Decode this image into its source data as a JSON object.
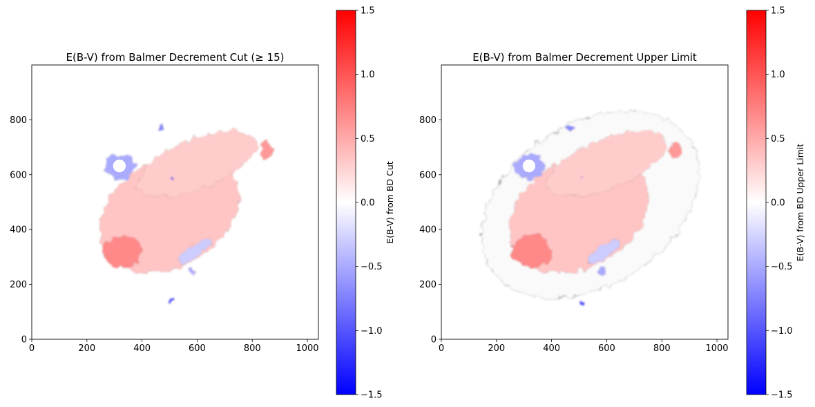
{
  "figure": {
    "colormap": {
      "name": "bwr",
      "low": "#0000ff",
      "mid": "#ffffff",
      "high": "#ff0000"
    },
    "colorbar_ticks": [
      -1.5,
      -1.0,
      -0.5,
      0.0,
      0.5,
      1.0,
      1.5
    ],
    "colorbar_tick_labels": [
      "−1.5",
      "−1.0",
      "−0.5",
      "0.0",
      "0.5",
      "1.0",
      "1.5"
    ],
    "axis_ticks": [
      0,
      200,
      400,
      600,
      800,
      1000
    ]
  },
  "chart_data": [
    {
      "type": "heatmap",
      "title": "E(B-V) from Balmer Decrement Cut (≥ 15)",
      "xlabel": "",
      "ylabel": "",
      "xlim": [
        0,
        1040
      ],
      "ylim": [
        0,
        1000
      ],
      "colorbar_label": "E(B-V) from BD Cut",
      "vlim": [
        -1.5,
        1.5
      ],
      "grid": false,
      "show_outer_contour": false,
      "regions": [
        {
          "kind": "main",
          "cx": 500,
          "cy": 460,
          "rx": 270,
          "ry": 195,
          "rotation_deg": 30,
          "value": 0.35
        },
        {
          "kind": "main",
          "cx": 600,
          "cy": 640,
          "rx": 230,
          "ry": 90,
          "rotation_deg": 22,
          "value": 0.3
        },
        {
          "kind": "main",
          "cx": 330,
          "cy": 320,
          "rx": 70,
          "ry": 60,
          "rotation_deg": 0,
          "value": 0.7
        },
        {
          "kind": "main",
          "cx": 850,
          "cy": 690,
          "rx": 22,
          "ry": 30,
          "rotation_deg": 0,
          "value": 0.6
        },
        {
          "kind": "neg",
          "cx": 320,
          "cy": 630,
          "rx": 55,
          "ry": 45,
          "rotation_deg": 0,
          "value": -0.5
        },
        {
          "kind": "neg",
          "cx": 590,
          "cy": 320,
          "rx": 70,
          "ry": 22,
          "rotation_deg": 35,
          "value": -0.3
        },
        {
          "kind": "neg",
          "cx": 510,
          "cy": 135,
          "rx": 8,
          "ry": 9,
          "rotation_deg": 0,
          "value": -1.0
        },
        {
          "kind": "neg",
          "cx": 470,
          "cy": 770,
          "rx": 14,
          "ry": 10,
          "rotation_deg": 0,
          "value": -0.7
        },
        {
          "kind": "neg",
          "cx": 585,
          "cy": 250,
          "rx": 14,
          "ry": 10,
          "rotation_deg": 0,
          "value": -0.5
        },
        {
          "kind": "neg",
          "cx": 510,
          "cy": 585,
          "rx": 5,
          "ry": 5,
          "rotation_deg": 0,
          "value": -1.3
        }
      ],
      "holes": [
        {
          "cx": 318,
          "cy": 632,
          "r": 23
        }
      ]
    },
    {
      "type": "heatmap",
      "title": "E(B-V) from Balmer Decrement Upper Limit",
      "xlabel": "",
      "ylabel": "",
      "xlim": [
        0,
        1040
      ],
      "ylim": [
        0,
        1000
      ],
      "colorbar_label": "E(B-V) from BD Upper Limit",
      "vlim": [
        -1.5,
        1.5
      ],
      "grid": false,
      "show_outer_contour": true,
      "outer_contour": {
        "cx": 540,
        "cy": 490,
        "rx": 430,
        "ry": 295,
        "rotation_deg": 33
      },
      "regions": [
        {
          "kind": "main",
          "cx": 500,
          "cy": 460,
          "rx": 270,
          "ry": 195,
          "rotation_deg": 30,
          "value": 0.35
        },
        {
          "kind": "main",
          "cx": 600,
          "cy": 640,
          "rx": 230,
          "ry": 90,
          "rotation_deg": 22,
          "value": 0.3
        },
        {
          "kind": "main",
          "cx": 330,
          "cy": 320,
          "rx": 70,
          "ry": 60,
          "rotation_deg": 0,
          "value": 0.7
        },
        {
          "kind": "main",
          "cx": 850,
          "cy": 690,
          "rx": 22,
          "ry": 30,
          "rotation_deg": 0,
          "value": 0.6
        },
        {
          "kind": "neg",
          "cx": 320,
          "cy": 630,
          "rx": 55,
          "ry": 45,
          "rotation_deg": 0,
          "value": -0.5
        },
        {
          "kind": "neg",
          "cx": 590,
          "cy": 320,
          "rx": 70,
          "ry": 22,
          "rotation_deg": 35,
          "value": -0.3
        },
        {
          "kind": "neg",
          "cx": 510,
          "cy": 135,
          "rx": 8,
          "ry": 9,
          "rotation_deg": 0,
          "value": -1.0
        },
        {
          "kind": "neg",
          "cx": 470,
          "cy": 770,
          "rx": 14,
          "ry": 10,
          "rotation_deg": 0,
          "value": -0.7
        },
        {
          "kind": "neg",
          "cx": 585,
          "cy": 250,
          "rx": 14,
          "ry": 10,
          "rotation_deg": 0,
          "value": -0.5
        },
        {
          "kind": "neg",
          "cx": 510,
          "cy": 585,
          "rx": 5,
          "ry": 5,
          "rotation_deg": 0,
          "value": -1.3
        }
      ],
      "holes": [
        {
          "cx": 318,
          "cy": 632,
          "r": 23
        }
      ]
    }
  ]
}
